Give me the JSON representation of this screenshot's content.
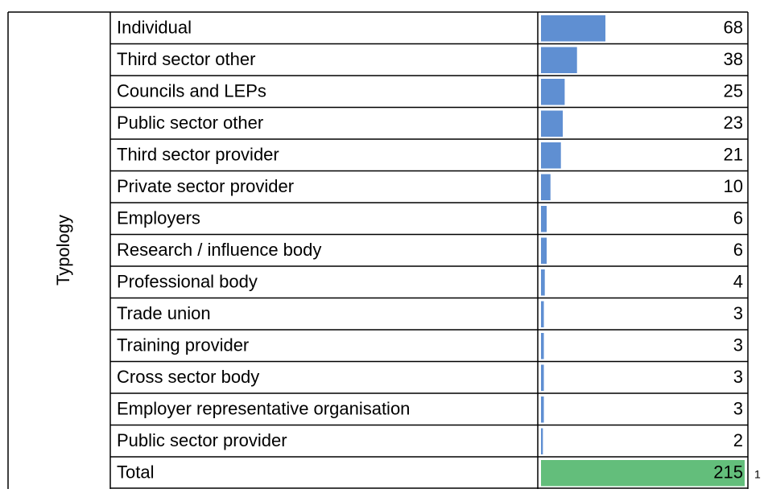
{
  "table": {
    "row_header": "Typology",
    "rows": [
      {
        "label": "Individual",
        "value": 68
      },
      {
        "label": "Third sector other",
        "value": 38
      },
      {
        "label": "Councils and LEPs",
        "value": 25
      },
      {
        "label": "Public sector other",
        "value": 23
      },
      {
        "label": "Third sector provider",
        "value": 21
      },
      {
        "label": "Private sector provider",
        "value": 10
      },
      {
        "label": "Employers",
        "value": 6
      },
      {
        "label": "Research / influence body",
        "value": 6
      },
      {
        "label": "Professional body",
        "value": 4
      },
      {
        "label": "Trade union",
        "value": 3
      },
      {
        "label": "Training provider",
        "value": 3
      },
      {
        "label": "Cross sector body",
        "value": 3
      },
      {
        "label": "Employer representative organisation",
        "value": 3
      },
      {
        "label": "Public sector provider",
        "value": 2
      }
    ],
    "total": {
      "label": "Total",
      "value": 215
    },
    "next_column": "1",
    "bar_color": "#5f8fd2",
    "total_bar_color": "#63be7b"
  }
}
